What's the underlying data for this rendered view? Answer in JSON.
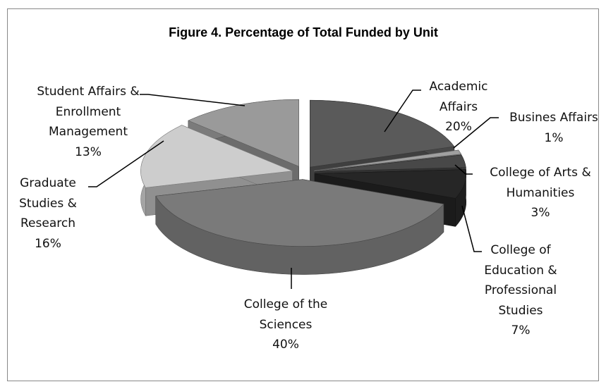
{
  "chart_data": {
    "type": "pie",
    "title": "Figure 4. Percentage of Total Funded by Unit",
    "categories": [
      "Academic Affairs",
      "Busines Affairs",
      "College of Arts & Humanities",
      "College of Education & Professional Studies",
      "College of the Sciences",
      "Graduate Studies & Research",
      "Student Affairs & Enrollment Management"
    ],
    "values": [
      20,
      1,
      3,
      7,
      40,
      16,
      13
    ],
    "value_labels": [
      "20%",
      "1%",
      "3%",
      "7%",
      "40%",
      "16%",
      "13%"
    ],
    "colors": [
      "#5a5a5a",
      "#a0a0a0",
      "#484848",
      "#262626",
      "#7a7a7a",
      "#cdcdcd",
      "#9a9a9a"
    ]
  }
}
